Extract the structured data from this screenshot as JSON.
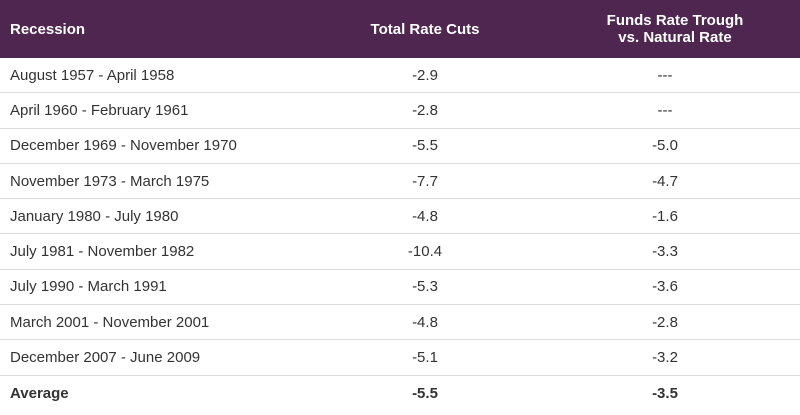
{
  "header": {
    "col1": "Recession",
    "col2": "Total Rate Cuts",
    "col3_line1": "Funds Rate Trough",
    "col3_line2": "vs. Natural Rate"
  },
  "rows": [
    {
      "recession": "August 1957 - April 1958",
      "cuts": "-2.9",
      "trough": "---"
    },
    {
      "recession": "April 1960 - February 1961",
      "cuts": "-2.8",
      "trough": "---"
    },
    {
      "recession": "December 1969 - November 1970",
      "cuts": "-5.5",
      "trough": "-5.0"
    },
    {
      "recession": "November 1973 - March 1975",
      "cuts": "-7.7",
      "trough": "-4.7"
    },
    {
      "recession": "January 1980 - July 1980",
      "cuts": "-4.8",
      "trough": "-1.6"
    },
    {
      "recession": "July 1981 - November 1982",
      "cuts": "-10.4",
      "trough": "-3.3"
    },
    {
      "recession": "July 1990 - March 1991",
      "cuts": "-5.3",
      "trough": "-3.6"
    },
    {
      "recession": "March 2001 - November 2001",
      "cuts": "-4.8",
      "trough": "-2.8"
    },
    {
      "recession": "December 2007 - June 2009",
      "cuts": "-5.1",
      "trough": "-3.2"
    }
  ],
  "average": {
    "recession": "Average",
    "cuts": "-5.5",
    "trough": "-3.5"
  },
  "colors": {
    "header_bg": "#4f2650",
    "header_text": "#ffffff",
    "row_divider": "#dcdcdc",
    "body_text": "#333333"
  }
}
